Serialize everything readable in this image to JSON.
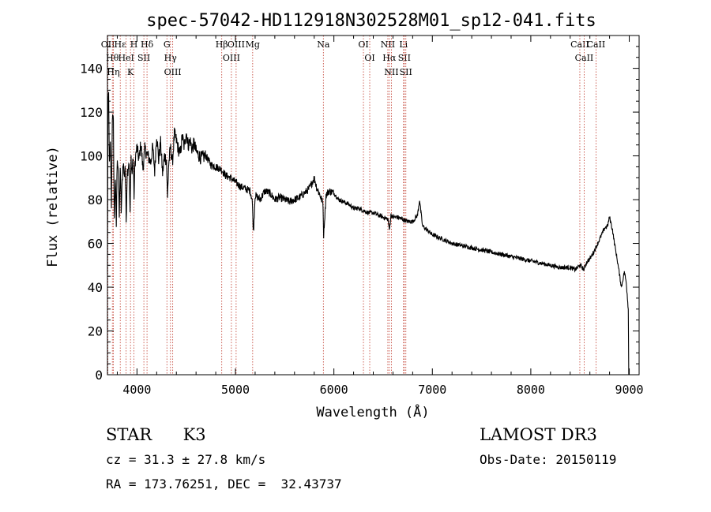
{
  "chart_data": {
    "type": "line",
    "title": "spec-57042-HD112918N302528M01_sp12-041.fits",
    "xlabel": "Wavelength (Å)",
    "ylabel": "Flux (relative)",
    "xlim": [
      3700,
      9100
    ],
    "ylim": [
      0,
      155
    ],
    "x_ticks": [
      "4000",
      "5000",
      "6000",
      "7000",
      "8000",
      "9000"
    ],
    "y_ticks": [
      "0",
      "20",
      "40",
      "60",
      "80",
      "100",
      "120",
      "140"
    ],
    "series": [
      {
        "name": "flux",
        "x": [
          3700,
          3705,
          3712,
          3720,
          3730,
          3740,
          3750,
          3760,
          3770,
          3780,
          3790,
          3800,
          3810,
          3820,
          3830,
          3840,
          3850,
          3860,
          3870,
          3880,
          3890,
          3900,
          3910,
          3920,
          3930,
          3940,
          3950,
          3960,
          3970,
          3980,
          3990,
          4000,
          4020,
          4040,
          4060,
          4080,
          4100,
          4120,
          4140,
          4160,
          4180,
          4200,
          4220,
          4240,
          4260,
          4280,
          4300,
          4310,
          4320,
          4340,
          4360,
          4380,
          4400,
          4420,
          4440,
          4460,
          4480,
          4500,
          4520,
          4540,
          4560,
          4580,
          4600,
          4650,
          4700,
          4750,
          4800,
          4850,
          4870,
          4900,
          4950,
          5000,
          5050,
          5100,
          5150,
          5170,
          5183,
          5200,
          5250,
          5300,
          5350,
          5400,
          5450,
          5500,
          5550,
          5600,
          5650,
          5700,
          5750,
          5780,
          5800,
          5830,
          5860,
          5890,
          5893,
          5896,
          5920,
          5950,
          6000,
          6050,
          6100,
          6150,
          6200,
          6250,
          6300,
          6350,
          6400,
          6450,
          6500,
          6550,
          6563,
          6580,
          6600,
          6650,
          6700,
          6750,
          6800,
          6850,
          6870,
          6880,
          6900,
          6950,
          7000,
          7100,
          7200,
          7300,
          7400,
          7500,
          7600,
          7700,
          7800,
          7900,
          8000,
          8100,
          8200,
          8300,
          8400,
          8450,
          8500,
          8542,
          8560,
          8600,
          8650,
          8700,
          8750,
          8780,
          8800,
          8830,
          8850,
          8880,
          8900,
          8920,
          8950,
          8970,
          8990
        ],
        "values": [
          45,
          120,
          128,
          95,
          105,
          78,
          118,
          115,
          70,
          90,
          68,
          100,
          94,
          72,
          95,
          75,
          88,
          98,
          90,
          96,
          70,
          92,
          95,
          98,
          74,
          99,
          92,
          100,
          82,
          97,
          101,
          104,
          98,
          106,
          94,
          103,
          101,
          99,
          97,
          104,
          93,
          110,
          98,
          106,
          92,
          100,
          98,
          80,
          95,
          104,
          97,
          110,
          107,
          103,
          101,
          109,
          104,
          111,
          105,
          107,
          103,
          106,
          102,
          99,
          100,
          96,
          95,
          94,
          93,
          91,
          90,
          88,
          86,
          85,
          84,
          80,
          65,
          82,
          80,
          84,
          83,
          80,
          81,
          80,
          79,
          80,
          81,
          83,
          85,
          88,
          90,
          85,
          82,
          78,
          70,
          64,
          82,
          84,
          83,
          80,
          79,
          78,
          76,
          76,
          75,
          74,
          74,
          73,
          72,
          71,
          66,
          73,
          72,
          72,
          71,
          70,
          70,
          73,
          80,
          76,
          68,
          66,
          64,
          62,
          60,
          59,
          58,
          57,
          56,
          55,
          54,
          53,
          52,
          51,
          50,
          49,
          49,
          48,
          50,
          48,
          51,
          53,
          57,
          62,
          67,
          68,
          72,
          66,
          60,
          52,
          46,
          40,
          47,
          42,
          30
        ]
      }
    ],
    "line_markers": [
      {
        "wavelength": 3705,
        "label": "OII"
      },
      {
        "wavelength": 3750,
        "label": "Hθ"
      },
      {
        "wavelength": 3760,
        "label": "Hη"
      },
      {
        "wavelength": 3830,
        "label": "Hε"
      },
      {
        "wavelength": 3890,
        "label": "HeI"
      },
      {
        "wavelength": 3934,
        "label": "K"
      },
      {
        "wavelength": 3969,
        "label": "H"
      },
      {
        "wavelength": 4070,
        "label": "SII"
      },
      {
        "wavelength": 4102,
        "label": "Hδ"
      },
      {
        "wavelength": 4304,
        "label": "G"
      },
      {
        "wavelength": 4340,
        "label": "Hγ"
      },
      {
        "wavelength": 4363,
        "label": "OIII"
      },
      {
        "wavelength": 4861,
        "label": "Hβ"
      },
      {
        "wavelength": 4959,
        "label": "OIII"
      },
      {
        "wavelength": 5007,
        "label": "OIII"
      },
      {
        "wavelength": 5175,
        "label": "Mg"
      },
      {
        "wavelength": 5893,
        "label": "Na"
      },
      {
        "wavelength": 6300,
        "label": "OI"
      },
      {
        "wavelength": 6364,
        "label": "OI"
      },
      {
        "wavelength": 6548,
        "label": "NII"
      },
      {
        "wavelength": 6563,
        "label": "Hα"
      },
      {
        "wavelength": 6584,
        "label": "NII"
      },
      {
        "wavelength": 6707,
        "label": "Li"
      },
      {
        "wavelength": 6716,
        "label": "SII"
      },
      {
        "wavelength": 6731,
        "label": "SII"
      },
      {
        "wavelength": 8498,
        "label": "CaII"
      },
      {
        "wavelength": 8542,
        "label": "CaII"
      },
      {
        "wavelength": 8662,
        "label": "CaII"
      }
    ]
  },
  "info": {
    "object_class": "STAR",
    "subclass": "K3",
    "survey": "LAMOST DR3",
    "cz": "cz = 31.3 ± 27.8 km/s",
    "obs_date": "Obs-Date: 20150119",
    "coords": "RA = 173.76251, DEC =  32.43737"
  },
  "colors": {
    "spectrum": "#000000",
    "marker_lines": "#c0392b",
    "axes": "#000000"
  }
}
